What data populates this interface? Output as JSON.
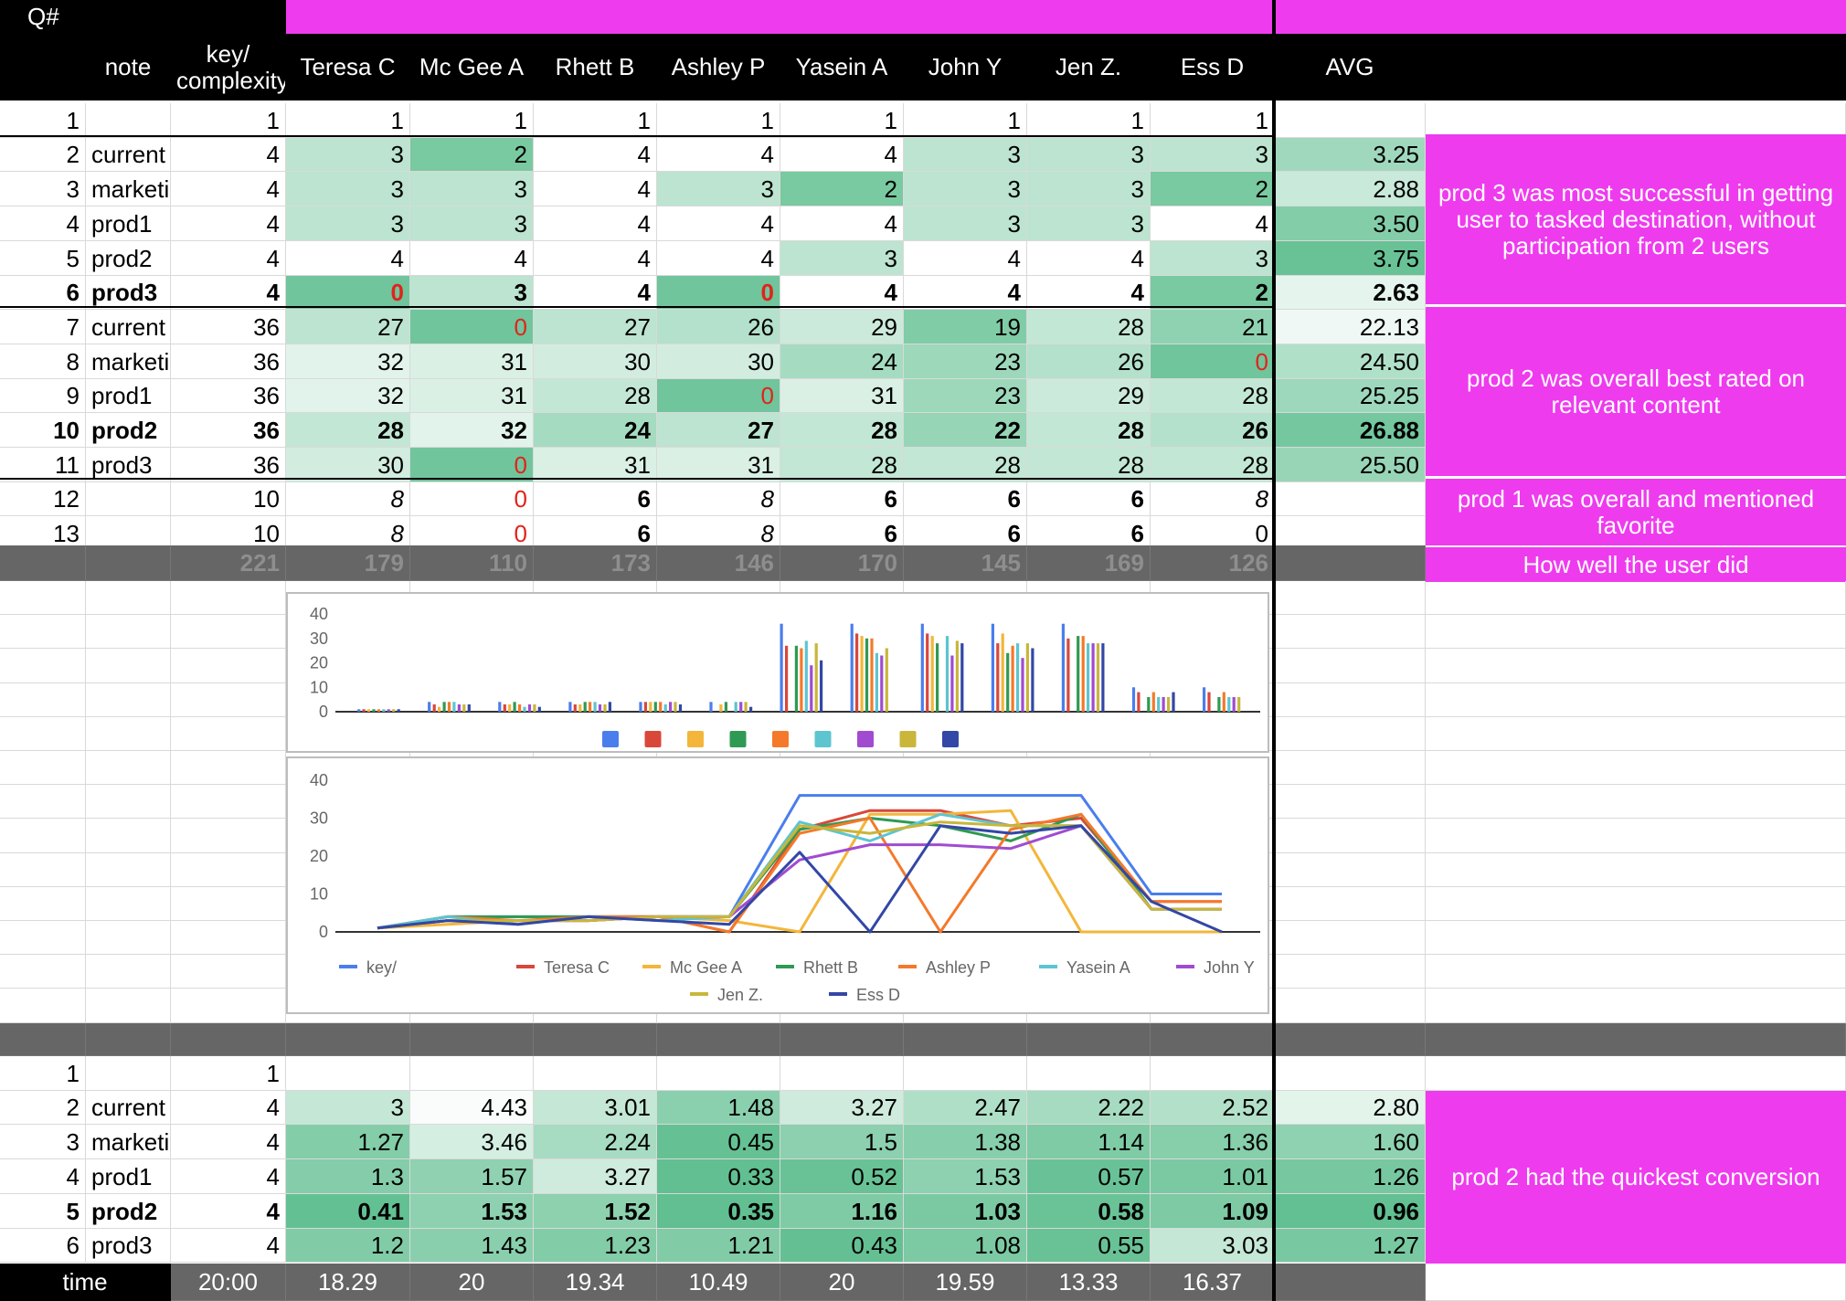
{
  "header": {
    "qnum": "Q#",
    "note": "note",
    "key_line1": "key/",
    "key_line2": "complexity",
    "users": [
      "Teresa C",
      "Mc Gee A",
      "Rhett B",
      "Ashley P",
      "Yasein A",
      "John Y",
      "Jen Z.",
      "Ess D"
    ],
    "avg": "AVG"
  },
  "section1": {
    "rows": [
      {
        "q": "1",
        "note": "",
        "key": "1",
        "vals": [
          "1",
          "1",
          "1",
          "1",
          "1",
          "1",
          "1",
          "1"
        ],
        "avg": "",
        "bold": false
      },
      {
        "q": "2",
        "note": "current",
        "key": "4",
        "vals": [
          "3",
          "2",
          "4",
          "4",
          "4",
          "3",
          "3",
          "3"
        ],
        "avg": "3.25",
        "bold": false
      },
      {
        "q": "3",
        "note": "marketi",
        "key": "4",
        "vals": [
          "3",
          "3",
          "4",
          "3",
          "2",
          "3",
          "3",
          "2"
        ],
        "avg": "2.88",
        "bold": false
      },
      {
        "q": "4",
        "note": "prod1",
        "key": "4",
        "vals": [
          "3",
          "3",
          "4",
          "4",
          "4",
          "3",
          "3",
          "4"
        ],
        "avg": "3.50",
        "bold": false
      },
      {
        "q": "5",
        "note": "prod2",
        "key": "4",
        "vals": [
          "4",
          "4",
          "4",
          "4",
          "3",
          "4",
          "4",
          "3"
        ],
        "avg": "3.75",
        "bold": false
      },
      {
        "q": "6",
        "note": "prod3",
        "key": "4",
        "vals": [
          "0",
          "3",
          "4",
          "0",
          "4",
          "4",
          "4",
          "2"
        ],
        "avg": "2.63",
        "bold": true
      },
      {
        "q": "7",
        "note": "current",
        "key": "36",
        "vals": [
          "27",
          "0",
          "27",
          "26",
          "29",
          "19",
          "28",
          "21"
        ],
        "avg": "22.13",
        "bold": false
      },
      {
        "q": "8",
        "note": "marketi",
        "key": "36",
        "vals": [
          "32",
          "31",
          "30",
          "30",
          "24",
          "23",
          "26",
          "0"
        ],
        "avg": "24.50",
        "bold": false
      },
      {
        "q": "9",
        "note": "prod1",
        "key": "36",
        "vals": [
          "32",
          "31",
          "28",
          "0",
          "31",
          "23",
          "29",
          "28"
        ],
        "avg": "25.25",
        "bold": false
      },
      {
        "q": "10",
        "note": "prod2",
        "key": "36",
        "vals": [
          "28",
          "32",
          "24",
          "27",
          "28",
          "22",
          "28",
          "26"
        ],
        "avg": "26.88",
        "bold": true
      },
      {
        "q": "11",
        "note": "prod3",
        "key": "36",
        "vals": [
          "30",
          "0",
          "31",
          "31",
          "28",
          "28",
          "28",
          "28"
        ],
        "avg": "25.50",
        "bold": false
      },
      {
        "q": "12",
        "note": "",
        "key": "10",
        "vals": [
          "8",
          "0",
          "6",
          "8",
          "6",
          "6",
          "6",
          "8"
        ],
        "avg": "",
        "bold": false
      },
      {
        "q": "13",
        "note": "",
        "key": "10",
        "vals": [
          "8",
          "0",
          "6",
          "8",
          "6",
          "6",
          "6",
          "0"
        ],
        "avg": "",
        "bold": false
      }
    ],
    "totals": {
      "key": "221",
      "vals": [
        "179",
        "110",
        "173",
        "146",
        "170",
        "145",
        "169",
        "126"
      ]
    },
    "notes": [
      "prod 3 was most successful in getting user to tasked destination, without participation from 2 users",
      "prod 2 was overall best rated on relevant content",
      "prod 1 was overall and mentioned favorite",
      "How well the user did"
    ]
  },
  "section2": {
    "rows": [
      {
        "q": "1",
        "note": "",
        "key": "1",
        "vals": [
          "",
          "",
          "",
          "",
          "",
          "",
          "",
          ""
        ],
        "avg": "",
        "bold": false
      },
      {
        "q": "2",
        "note": "current",
        "key": "4",
        "vals": [
          "3",
          "4.43",
          "3.01",
          "1.48",
          "3.27",
          "2.47",
          "2.22",
          "2.52"
        ],
        "avg": "2.80",
        "bold": false
      },
      {
        "q": "3",
        "note": "marketi",
        "key": "4",
        "vals": [
          "1.27",
          "3.46",
          "2.24",
          "0.45",
          "1.5",
          "1.38",
          "1.14",
          "1.36"
        ],
        "avg": "1.60",
        "bold": false
      },
      {
        "q": "4",
        "note": "prod1",
        "key": "4",
        "vals": [
          "1.3",
          "1.57",
          "3.27",
          "0.33",
          "0.52",
          "1.53",
          "0.57",
          "1.01"
        ],
        "avg": "1.26",
        "bold": false
      },
      {
        "q": "5",
        "note": "prod2",
        "key": "4",
        "vals": [
          "0.41",
          "1.53",
          "1.52",
          "0.35",
          "1.16",
          "1.03",
          "0.58",
          "1.09"
        ],
        "avg": "0.96",
        "bold": true
      },
      {
        "q": "6",
        "note": "prod3",
        "key": "4",
        "vals": [
          "1.2",
          "1.43",
          "1.23",
          "1.21",
          "0.43",
          "1.08",
          "0.55",
          "3.03"
        ],
        "avg": "1.27",
        "bold": false
      }
    ],
    "time": {
      "label": "time",
      "key": "20:00",
      "vals": [
        "18.29",
        "20",
        "19.34",
        "10.49",
        "20",
        "19.59",
        "13.33",
        "16.37"
      ]
    },
    "note": "prod 2 had the quickest conversion"
  },
  "colors": {
    "magenta": "#ee3bee",
    "header_black": "#000000",
    "total_gray": "#666666",
    "green_max": "#57bb8a",
    "series": [
      "#4a7eed",
      "#d9473b",
      "#f3b63a",
      "#2f9a53",
      "#f4792b",
      "#5cc5d0",
      "#a14bd0",
      "#c9b63a",
      "#3247a6"
    ]
  },
  "chart_data": [
    {
      "type": "bar",
      "categories": [
        "1",
        "2",
        "3",
        "4",
        "5",
        "6",
        "7",
        "8",
        "9",
        "10",
        "11",
        "12",
        "13"
      ],
      "ylim": [
        0,
        40
      ],
      "yticks": [
        "0",
        "10",
        "20",
        "30",
        "40"
      ],
      "legend": "bottom",
      "grid": false,
      "series": [
        {
          "values": [
            1,
            4,
            4,
            4,
            4,
            4,
            36,
            36,
            36,
            36,
            36,
            10,
            10
          ]
        },
        {
          "values": [
            1,
            3,
            3,
            3,
            4,
            0,
            27,
            32,
            32,
            28,
            30,
            8,
            8
          ]
        },
        {
          "values": [
            1,
            2,
            3,
            3,
            4,
            3,
            0,
            31,
            31,
            32,
            0,
            0,
            0
          ]
        },
        {
          "values": [
            1,
            4,
            4,
            4,
            4,
            4,
            27,
            30,
            28,
            24,
            31,
            6,
            6
          ]
        },
        {
          "values": [
            1,
            4,
            3,
            4,
            4,
            0,
            26,
            30,
            0,
            27,
            31,
            8,
            8
          ]
        },
        {
          "values": [
            1,
            4,
            2,
            4,
            3,
            4,
            29,
            24,
            31,
            28,
            28,
            6,
            6
          ]
        },
        {
          "values": [
            1,
            3,
            3,
            3,
            4,
            4,
            19,
            23,
            23,
            22,
            28,
            6,
            6
          ]
        },
        {
          "values": [
            1,
            3,
            3,
            3,
            4,
            4,
            28,
            26,
            29,
            28,
            28,
            6,
            6
          ]
        },
        {
          "values": [
            1,
            3,
            2,
            4,
            3,
            2,
            21,
            0,
            28,
            26,
            28,
            8,
            0
          ]
        }
      ]
    },
    {
      "type": "line",
      "categories": [
        "1",
        "2",
        "3",
        "4",
        "5",
        "6",
        "7",
        "8",
        "9",
        "10",
        "11",
        "12",
        "13"
      ],
      "ylim": [
        0,
        40
      ],
      "yticks": [
        "0",
        "10",
        "20",
        "30",
        "40"
      ],
      "legend": "bottom",
      "grid": false,
      "series": [
        {
          "name": "key/",
          "values": [
            1,
            4,
            4,
            4,
            4,
            4,
            36,
            36,
            36,
            36,
            36,
            10,
            10
          ]
        },
        {
          "name": "Teresa C",
          "values": [
            1,
            3,
            3,
            3,
            4,
            0,
            27,
            32,
            32,
            28,
            30,
            8,
            8
          ]
        },
        {
          "name": "Mc Gee A",
          "values": [
            1,
            2,
            3,
            3,
            4,
            3,
            0,
            31,
            31,
            32,
            0,
            0,
            0
          ]
        },
        {
          "name": "Rhett B",
          "values": [
            1,
            4,
            4,
            4,
            4,
            4,
            27,
            30,
            28,
            24,
            31,
            6,
            6
          ]
        },
        {
          "name": "Ashley P",
          "values": [
            1,
            4,
            3,
            4,
            4,
            0,
            26,
            30,
            0,
            27,
            31,
            8,
            8
          ]
        },
        {
          "name": "Yasein A",
          "values": [
            1,
            4,
            2,
            4,
            3,
            4,
            29,
            24,
            31,
            28,
            28,
            6,
            6
          ]
        },
        {
          "name": "John Y",
          "values": [
            1,
            3,
            3,
            3,
            4,
            4,
            19,
            23,
            23,
            22,
            28,
            6,
            6
          ]
        },
        {
          "name": "Jen Z.",
          "values": [
            1,
            3,
            3,
            3,
            4,
            4,
            28,
            26,
            29,
            28,
            28,
            6,
            6
          ]
        },
        {
          "name": "Ess D",
          "values": [
            1,
            3,
            2,
            4,
            3,
            2,
            21,
            0,
            28,
            26,
            28,
            8,
            0
          ]
        }
      ]
    }
  ]
}
